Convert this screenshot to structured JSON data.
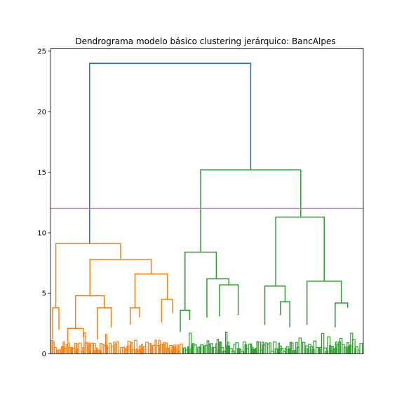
{
  "chart_data": {
    "type": "dendrogram",
    "title": "Dendrograma modelo básico clustering jerárquico: BancAlpes",
    "xlabel": "",
    "ylabel": "",
    "ylim": [
      0,
      25.2
    ],
    "yticks": [
      0,
      5,
      10,
      15,
      20,
      25
    ],
    "xticks_visible": false,
    "grid": false,
    "threshold_line": {
      "y": 12.0,
      "color": "#da70d6"
    },
    "link_colors": {
      "root": "#1f77b4",
      "cluster_1": "#ff7f0e",
      "cluster_2": "#2ca02c"
    },
    "links": [
      {
        "name": "root",
        "color": "root",
        "left_x": 0.125,
        "left_height": 9.1,
        "right_x": 0.64,
        "right_height": 15.2,
        "height": 24.0
      },
      {
        "name": "cluster-1-top",
        "color": "cluster_1",
        "left_x": 0.017,
        "left_height": 3.8,
        "right_x": 0.224,
        "right_height": 7.8,
        "height": 9.1
      },
      {
        "name": "cluster-2-top",
        "color": "cluster_2",
        "left_x": 0.48,
        "left_height": 8.4,
        "right_x": 0.8,
        "right_height": 11.3,
        "height": 15.2
      },
      {
        "name": "cluster-1-b",
        "color": "cluster_1",
        "left_x": 0.126,
        "left_height": 4.8,
        "right_x": 0.322,
        "right_height": 6.6,
        "height": 7.8
      },
      {
        "name": "cluster-1-c",
        "color": "cluster_1",
        "left_x": 0.08,
        "left_height": 2.1,
        "right_x": 0.172,
        "right_height": 3.8,
        "height": 4.8
      },
      {
        "name": "cluster-1-d",
        "color": "cluster_1",
        "left_x": 0.27,
        "left_height": 3.8,
        "right_x": 0.374,
        "right_height": 4.5,
        "height": 6.6
      },
      {
        "name": "cluster-1-e",
        "color": "cluster_1",
        "left_x": 0.007,
        "left_height": 1.2,
        "right_x": 0.027,
        "right_height": 2.0,
        "height": 3.8
      },
      {
        "name": "cluster-1-f",
        "color": "cluster_1",
        "left_x": 0.055,
        "left_height": 1.0,
        "right_x": 0.105,
        "right_height": 1.4,
        "height": 2.1
      },
      {
        "name": "cluster-1-g",
        "color": "cluster_1",
        "left_x": 0.15,
        "left_height": 1.2,
        "right_x": 0.194,
        "right_height": 2.2,
        "height": 3.8
      },
      {
        "name": "cluster-1-h",
        "color": "cluster_1",
        "left_x": 0.255,
        "left_height": 2.4,
        "right_x": 0.285,
        "right_height": 3.0,
        "height": 3.8
      },
      {
        "name": "cluster-1-i",
        "color": "cluster_1",
        "left_x": 0.355,
        "left_height": 2.6,
        "right_x": 0.39,
        "right_height": 3.4,
        "height": 4.5
      },
      {
        "name": "cluster-2-a",
        "color": "cluster_2",
        "left_x": 0.43,
        "left_height": 3.6,
        "right_x": 0.53,
        "right_height": 6.2,
        "height": 8.4
      },
      {
        "name": "cluster-2-b",
        "color": "cluster_2",
        "left_x": 0.72,
        "left_height": 5.6,
        "right_x": 0.875,
        "right_height": 6.0,
        "height": 11.3
      },
      {
        "name": "cluster-2-c",
        "color": "cluster_2",
        "left_x": 0.5,
        "left_height": 3.0,
        "right_x": 0.57,
        "right_height": 5.7,
        "height": 6.2
      },
      {
        "name": "cluster-2-d",
        "color": "cluster_2",
        "left_x": 0.54,
        "left_height": 3.1,
        "right_x": 0.6,
        "right_height": 3.2,
        "height": 5.7
      },
      {
        "name": "cluster-2-e",
        "color": "cluster_2",
        "left_x": 0.685,
        "left_height": 2.4,
        "right_x": 0.75,
        "right_height": 4.3,
        "height": 5.6
      },
      {
        "name": "cluster-2-f",
        "color": "cluster_2",
        "left_x": 0.82,
        "left_height": 2.4,
        "right_x": 0.93,
        "right_height": 4.2,
        "height": 6.0
      },
      {
        "name": "cluster-2-g",
        "color": "cluster_2",
        "left_x": 0.415,
        "left_height": 1.8,
        "right_x": 0.445,
        "right_height": 2.8,
        "height": 3.6
      },
      {
        "name": "cluster-2-h",
        "color": "cluster_2",
        "left_x": 0.91,
        "left_height": 2.2,
        "right_x": 0.95,
        "right_height": 3.8,
        "height": 4.2
      },
      {
        "name": "cluster-2-i",
        "color": "cluster_2",
        "left_x": 0.735,
        "left_height": 3.2,
        "right_x": 0.765,
        "right_height": 2.2,
        "height": 4.3
      }
    ]
  }
}
